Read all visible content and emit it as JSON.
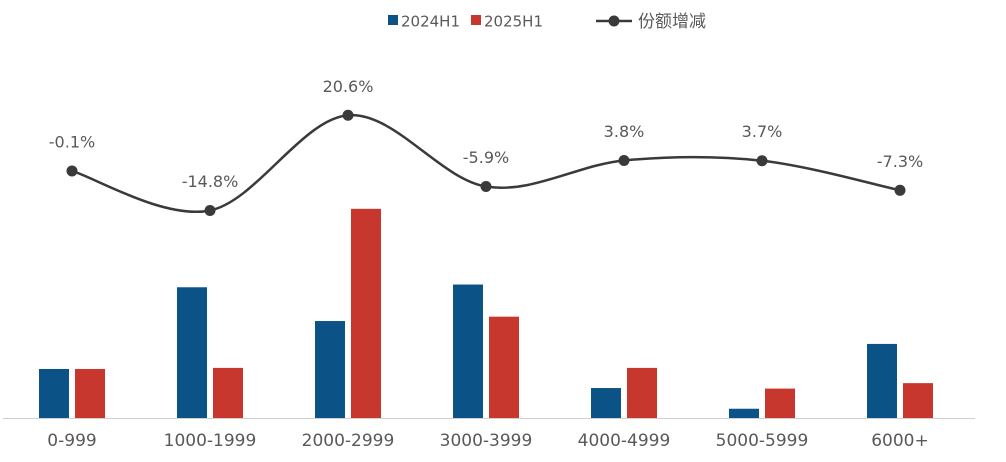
{
  "chart_data": {
    "type": "bar",
    "categories": [
      "0-999",
      "1000-1999",
      "2000-2999",
      "3000-3999",
      "4000-4999",
      "5000-5999",
      "6000+"
    ],
    "series": [
      {
        "name": "2024H1",
        "color": "#0b5286",
        "values": [
          9.0,
          24.0,
          17.8,
          24.5,
          5.5,
          1.7,
          13.6
        ]
      },
      {
        "name": "2025H1",
        "color": "#c8372d",
        "values": [
          9.0,
          9.2,
          38.4,
          18.6,
          9.2,
          5.4,
          6.4
        ]
      },
      {
        "name": "份额增减",
        "color": "#3a3a3a",
        "type": "line",
        "axis": "y2",
        "smooth": true,
        "values": [
          -0.1,
          -14.8,
          20.6,
          -5.9,
          3.8,
          3.7,
          -7.3
        ],
        "value_labels": [
          "-0.1%",
          "-14.8%",
          "20.6%",
          "-5.9%",
          "3.8%",
          "3.7%",
          "-7.3%"
        ]
      }
    ],
    "ylim": [
      0,
      76
    ],
    "y2lim": [
      -92,
      62
    ],
    "legend": "top"
  }
}
